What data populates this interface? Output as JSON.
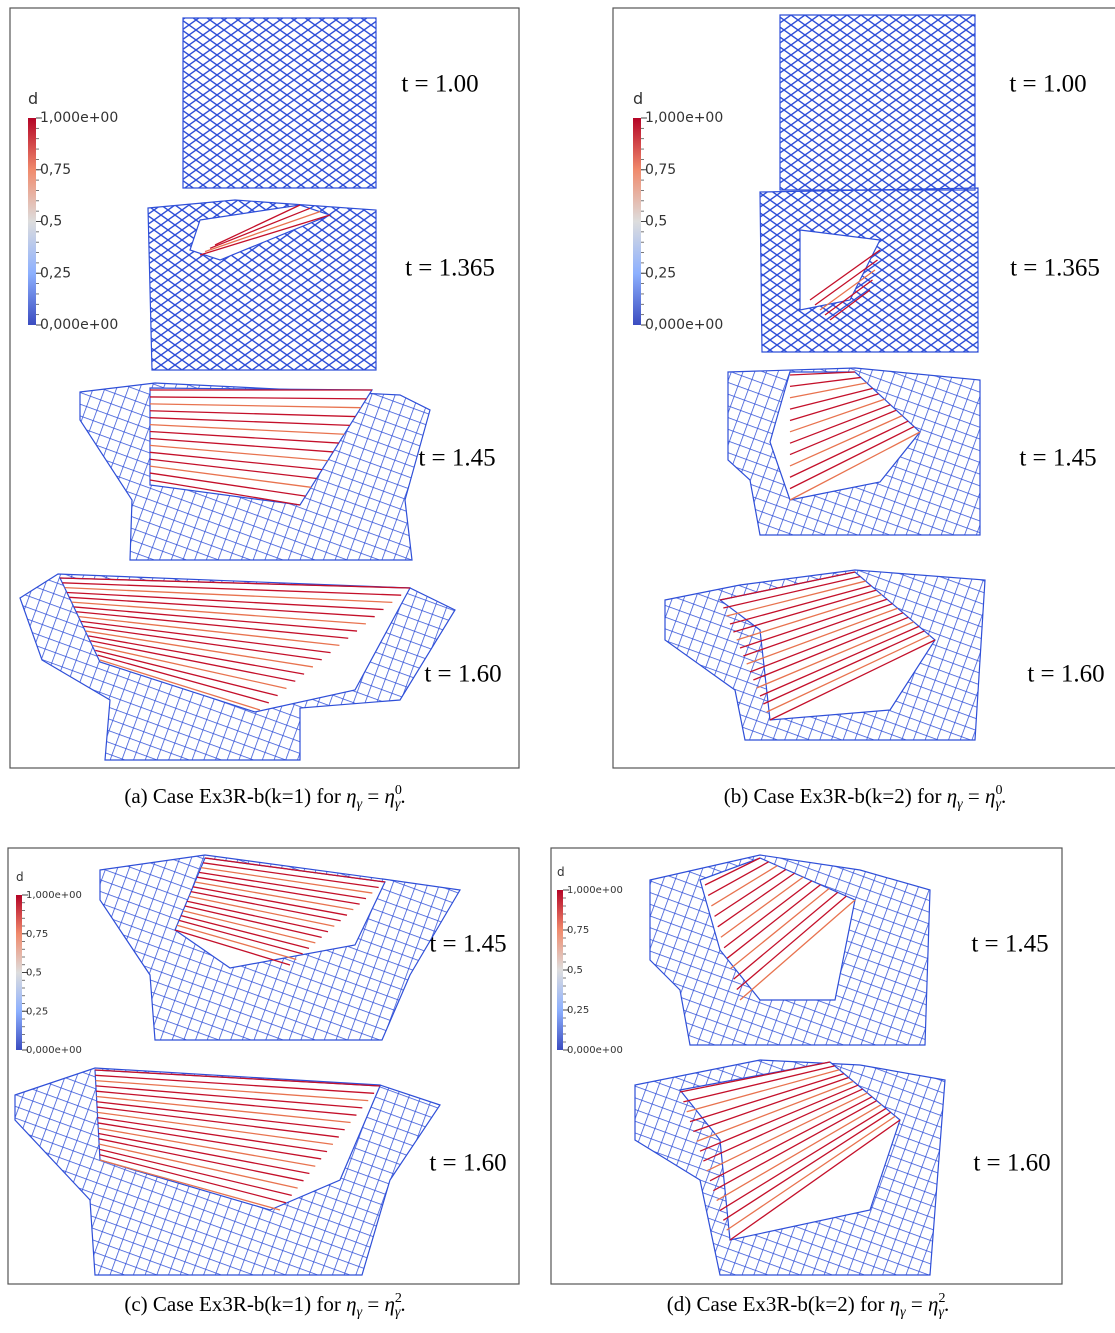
{
  "panels": [
    {
      "times": [
        "t = 1.00",
        "t = 1.365",
        "t = 1.45",
        "t = 1.60"
      ],
      "colorbar": {
        "title": "d",
        "ticks": [
          "1,000e+00",
          "0,75",
          "0,5",
          "0,25",
          "0,000e+00"
        ]
      },
      "caption": {
        "text": "(a) Case Ex3R-b(k=1) for ",
        "lhs": "η",
        "lhs_sub": "γ",
        "relation": " = ",
        "rhs": "η",
        "rhs_sub": "γ",
        "rhs_sup": "0",
        "end": "."
      }
    },
    {
      "times": [
        "t = 1.00",
        "t = 1.365",
        "t = 1.45",
        "t = 1.60"
      ],
      "colorbar": {
        "title": "d",
        "ticks": [
          "1,000e+00",
          "0,75",
          "0,5",
          "0,25",
          "0,000e+00"
        ]
      },
      "caption": {
        "text": "(b) Case Ex3R-b(k=2) for ",
        "lhs": "η",
        "lhs_sub": "γ",
        "relation": " = ",
        "rhs": "η",
        "rhs_sub": "γ",
        "rhs_sup": "0",
        "end": "."
      }
    },
    {
      "times": [
        "t = 1.45",
        "t = 1.60"
      ],
      "colorbar": {
        "title": "d",
        "ticks": [
          "1,000e+00",
          "0,75",
          "0,5",
          "0,25",
          "0,000e+00"
        ]
      },
      "caption": {
        "text": "(c) Case Ex3R-b(k=1) for ",
        "lhs": "η",
        "lhs_sub": "γ",
        "relation": " = ",
        "rhs": "η",
        "rhs_sub": "γ",
        "rhs_sup": "2",
        "end": "."
      }
    },
    {
      "times": [
        "t = 1.45",
        "t = 1.60"
      ],
      "colorbar": {
        "title": "d",
        "ticks": [
          "1,000e+00",
          "0,75",
          "0,5",
          "0,25",
          "0,000e+00"
        ]
      },
      "caption": {
        "text": "(d) Case Ex3R-b(k=2) for ",
        "lhs": "η",
        "lhs_sub": "γ",
        "relation": " = ",
        "rhs": "η",
        "rhs_sub": "γ",
        "rhs_sup": "2",
        "end": "."
      }
    }
  ]
}
